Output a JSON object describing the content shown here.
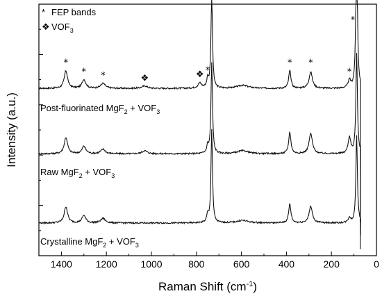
{
  "chart_data": {
    "type": "line",
    "xlabel": "Raman Shift (cm",
    "xlabel_sup": "-1",
    "xlabel_close": ")",
    "ylabel": "Intensity (a.u.)",
    "xlim": [
      1500,
      0
    ],
    "x_reversed": true,
    "ylim": [
      0,
      1
    ],
    "y_tick_labels": false,
    "x_ticks": [
      1400,
      1200,
      1000,
      800,
      600,
      400,
      200,
      0
    ],
    "x_tick_labels": [
      "1400",
      "1200",
      "1000",
      "800",
      "600",
      "400",
      "200",
      "0"
    ],
    "legend": {
      "placement": "top-left",
      "entries": [
        {
          "symbol": "*",
          "text": "FEP bands"
        },
        {
          "symbol": "❖",
          "text": "VOF",
          "sub": "3"
        }
      ]
    },
    "series": [
      {
        "name_parts": [
          [
            "Post-fluorinated MgF",
            ""
          ],
          [
            "2",
            "sub"
          ],
          [
            " + VOF",
            ""
          ],
          [
            "3",
            "sub"
          ]
        ],
        "baseline": 0.665,
        "peaks": [
          {
            "x": 1380,
            "h": 0.07,
            "w": 9
          },
          {
            "x": 1300,
            "h": 0.035,
            "w": 10
          },
          {
            "x": 1215,
            "h": 0.02,
            "w": 12
          },
          {
            "x": 1030,
            "h": 0.01,
            "w": 14
          },
          {
            "x": 785,
            "h": 0.02,
            "w": 10
          },
          {
            "x": 750,
            "h": 0.035,
            "w": 5
          },
          {
            "x": 732,
            "h": 0.37,
            "w": 4
          },
          {
            "x": 595,
            "h": 0.012,
            "w": 30
          },
          {
            "x": 385,
            "h": 0.07,
            "w": 6
          },
          {
            "x": 292,
            "h": 0.065,
            "w": 9
          },
          {
            "x": 120,
            "h": 0.03,
            "w": 7
          },
          {
            "x": 88,
            "h": 0.62,
            "w": 4
          }
        ]
      },
      {
        "name_parts": [
          [
            "Raw MgF",
            ""
          ],
          [
            "2",
            "sub"
          ],
          [
            " + VOF",
            ""
          ],
          [
            "3",
            "sub"
          ]
        ],
        "baseline": 0.405,
        "peaks": [
          {
            "x": 1380,
            "h": 0.065,
            "w": 9
          },
          {
            "x": 1300,
            "h": 0.03,
            "w": 10
          },
          {
            "x": 1215,
            "h": 0.018,
            "w": 12
          },
          {
            "x": 1030,
            "h": 0.012,
            "w": 14
          },
          {
            "x": 750,
            "h": 0.03,
            "w": 5
          },
          {
            "x": 732,
            "h": 0.36,
            "w": 4
          },
          {
            "x": 595,
            "h": 0.012,
            "w": 30
          },
          {
            "x": 385,
            "h": 0.085,
            "w": 6
          },
          {
            "x": 292,
            "h": 0.08,
            "w": 9
          },
          {
            "x": 120,
            "h": 0.065,
            "w": 7
          },
          {
            "x": 88,
            "h": 0.4,
            "w": 4
          }
        ]
      },
      {
        "name_parts": [
          [
            "Crystalline MgF",
            ""
          ],
          [
            "2",
            "sub"
          ],
          [
            " + VOF",
            ""
          ],
          [
            "3",
            "sub"
          ]
        ],
        "baseline": 0.13,
        "peaks": [
          {
            "x": 1380,
            "h": 0.065,
            "w": 9
          },
          {
            "x": 1300,
            "h": 0.03,
            "w": 10
          },
          {
            "x": 1215,
            "h": 0.018,
            "w": 12
          },
          {
            "x": 750,
            "h": 0.03,
            "w": 5
          },
          {
            "x": 732,
            "h": 0.37,
            "w": 4
          },
          {
            "x": 595,
            "h": 0.01,
            "w": 30
          },
          {
            "x": 385,
            "h": 0.075,
            "w": 6
          },
          {
            "x": 292,
            "h": 0.065,
            "w": 9
          },
          {
            "x": 120,
            "h": 0.02,
            "w": 7
          },
          {
            "x": 88,
            "h": 0.35,
            "w": 4
          }
        ]
      }
    ],
    "annotations": [
      {
        "symbol": "*",
        "x": 1380,
        "y": 0.755
      },
      {
        "symbol": "*",
        "x": 1300,
        "y": 0.72
      },
      {
        "symbol": "*",
        "x": 1215,
        "y": 0.705
      },
      {
        "symbol": "❖",
        "x": 1030,
        "y": 0.695
      },
      {
        "symbol": "❖",
        "x": 785,
        "y": 0.71
      },
      {
        "symbol": "*",
        "x": 750,
        "y": 0.725
      },
      {
        "symbol": "*",
        "x": 732,
        "y": 1.035
      },
      {
        "symbol": "*",
        "x": 385,
        "y": 0.755
      },
      {
        "symbol": "*",
        "x": 292,
        "y": 0.755
      },
      {
        "symbol": "*",
        "x": 120,
        "y": 0.72
      },
      {
        "symbol": "*",
        "x": 105,
        "y": 0.925
      }
    ]
  }
}
